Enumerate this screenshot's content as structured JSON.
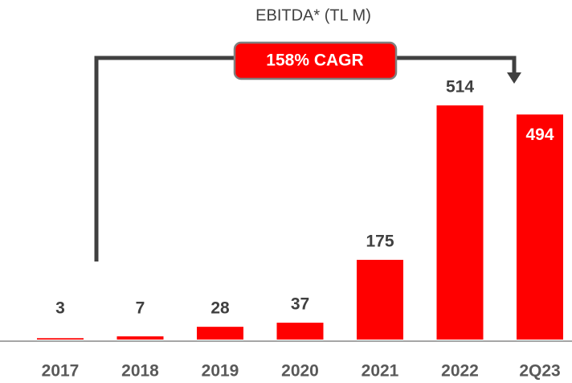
{
  "chart_data": {
    "type": "bar",
    "title": "EBITDA* (TL M)",
    "annotation": "158% CAGR",
    "categories": [
      "2017",
      "2018",
      "2019",
      "2020",
      "2021",
      "2022",
      "2Q23"
    ],
    "values": [
      3,
      7,
      28,
      37,
      175,
      514,
      494
    ],
    "color": "#ff0000"
  }
}
